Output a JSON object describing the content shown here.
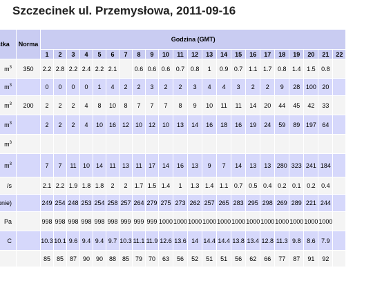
{
  "title": "Szczecinek ul. Przemysłowa, 2011-09-16",
  "header": {
    "substance_label": "ostka",
    "norm_label": "Norma",
    "hour_group_label": "Godzina (GMT)",
    "hours": [
      "1",
      "2",
      "3",
      "4",
      "5",
      "6",
      "7",
      "8",
      "9",
      "10",
      "11",
      "12",
      "13",
      "14",
      "15",
      "16",
      "17",
      "18",
      "19",
      "20",
      "21",
      "22"
    ]
  },
  "rows": [
    {
      "label": "m3",
      "norm": "350",
      "values": [
        "2.2",
        "2.8",
        "2.2",
        "2.4",
        "2.2",
        "2.1",
        "",
        "0.6",
        "0.6",
        "0.6",
        "0.7",
        "0.8",
        "1",
        "0.9",
        "0.7",
        "1.1",
        "1.7",
        "0.8",
        "1.4",
        "1.5",
        "0.8",
        ""
      ]
    },
    {
      "label": "m3",
      "norm": "",
      "values": [
        "0",
        "0",
        "0",
        "0",
        "1",
        "4",
        "2",
        "2",
        "3",
        "2",
        "2",
        "3",
        "4",
        "4",
        "3",
        "2",
        "2",
        "9",
        "28",
        "100",
        "20",
        ""
      ]
    },
    {
      "label": "m3",
      "norm": "200",
      "values": [
        "2",
        "2",
        "2",
        "4",
        "8",
        "10",
        "8",
        "7",
        "7",
        "7",
        "8",
        "9",
        "10",
        "11",
        "11",
        "14",
        "20",
        "44",
        "45",
        "42",
        "33",
        ""
      ]
    },
    {
      "label": "m3",
      "norm": "",
      "values": [
        "2",
        "2",
        "2",
        "4",
        "10",
        "16",
        "12",
        "10",
        "12",
        "10",
        "13",
        "14",
        "16",
        "18",
        "16",
        "19",
        "24",
        "59",
        "89",
        "197",
        "64",
        ""
      ]
    },
    {
      "label": "m3",
      "norm": "",
      "values": [
        "",
        "",
        "",
        "",
        "",
        "",
        "",
        "",
        "",
        "",
        "",
        "",
        "",
        "",
        "",
        "",
        "",
        "",
        "",
        "",
        "",
        ""
      ]
    },
    {
      "label": "m3",
      "norm": "",
      "values": [
        "7",
        "7",
        "11",
        "10",
        "14",
        "11",
        "13",
        "11",
        "17",
        "14",
        "16",
        "13",
        "9",
        "7",
        "14",
        "13",
        "13",
        "280",
        "323",
        "241",
        "184",
        ""
      ]
    },
    {
      "label": "/s",
      "norm": "",
      "values": [
        "2.1",
        "2.2",
        "1.9",
        "1.8",
        "1.8",
        "2",
        "2",
        "1.7",
        "1.5",
        "1.4",
        "1",
        "1.3",
        "1.4",
        "1.1",
        "0.7",
        "0.5",
        "0.4",
        "0.2",
        "0.1",
        "0.2",
        "0.4",
        ""
      ]
    },
    {
      "label": "pnie)",
      "norm": "",
      "values": [
        "249",
        "254",
        "248",
        "253",
        "254",
        "258",
        "257",
        "264",
        "279",
        "275",
        "273",
        "262",
        "257",
        "265",
        "283",
        "295",
        "298",
        "269",
        "289",
        "221",
        "244",
        ""
      ]
    },
    {
      "label": "Pa",
      "norm": "",
      "values": [
        "998",
        "998",
        "998",
        "998",
        "998",
        "998",
        "999",
        "999",
        "999",
        "1000",
        "1000",
        "1000",
        "1000",
        "1000",
        "1000",
        "1000",
        "1000",
        "1000",
        "1000",
        "1000",
        "1000",
        ""
      ]
    },
    {
      "label": "C",
      "norm": "",
      "values": [
        "10.3",
        "10.1",
        "9.6",
        "9.4",
        "9.4",
        "9.7",
        "10.3",
        "11.1",
        "11.9",
        "12.6",
        "13.6",
        "14",
        "14.4",
        "14.4",
        "13.8",
        "13.4",
        "12.8",
        "11.3",
        "9.8",
        "8.6",
        "7.9",
        ""
      ]
    },
    {
      "label": "",
      "norm": "",
      "values": [
        "85",
        "85",
        "87",
        "90",
        "90",
        "88",
        "85",
        "79",
        "70",
        "63",
        "56",
        "52",
        "51",
        "51",
        "56",
        "62",
        "66",
        "77",
        "87",
        "91",
        "92",
        ""
      ]
    }
  ]
}
